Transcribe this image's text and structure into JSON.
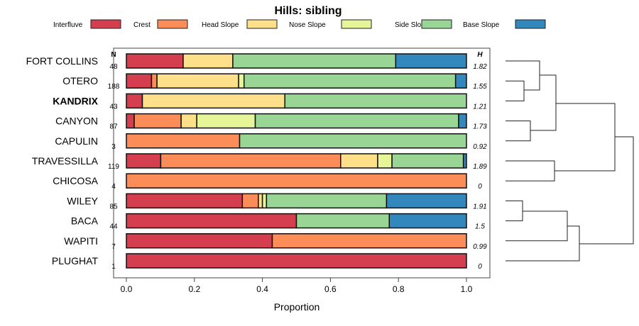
{
  "chart_data": {
    "type": "bar",
    "stacked": true,
    "orientation": "horizontal",
    "title": "Hills: sibling",
    "xlabel": "Proportion",
    "xlim": [
      0,
      1
    ],
    "xticks": [
      "0.0",
      "0.2",
      "0.4",
      "0.6",
      "0.8",
      "1.0"
    ],
    "n_header": "N",
    "h_header": "H",
    "legend_position": "top",
    "series": [
      {
        "name": "Interfluve",
        "color": "#D53E4F"
      },
      {
        "name": "Crest",
        "color": "#FC8D59"
      },
      {
        "name": "Head Slope",
        "color": "#FEE08B"
      },
      {
        "name": "Nose Slope",
        "color": "#E6F598"
      },
      {
        "name": "Side Slope",
        "color": "#99D594"
      },
      {
        "name": "Base Slope",
        "color": "#3288BD"
      }
    ],
    "rows": [
      {
        "label": "FORT COLLINS",
        "n": "48",
        "h": "1.82",
        "bold": false,
        "values": [
          0.167,
          0,
          0.146,
          0,
          0.479,
          0.208
        ]
      },
      {
        "label": "OTERO",
        "n": "188",
        "h": "1.55",
        "bold": false,
        "values": [
          0.074,
          0.016,
          0.24,
          0.016,
          0.622,
          0.032
        ]
      },
      {
        "label": "KANDRIX",
        "n": "43",
        "h": "1.21",
        "bold": true,
        "values": [
          0.047,
          0,
          0.419,
          0,
          0.534,
          0
        ]
      },
      {
        "label": "CANYON",
        "n": "87",
        "h": "1.73",
        "bold": false,
        "values": [
          0.023,
          0.138,
          0.046,
          0.172,
          0.598,
          0.023
        ]
      },
      {
        "label": "CAPULIN",
        "n": "3",
        "h": "0.92",
        "bold": false,
        "values": [
          0,
          0.333,
          0,
          0,
          0.667,
          0
        ]
      },
      {
        "label": "TRAVESSILLA",
        "n": "119",
        "h": "1.89",
        "bold": false,
        "values": [
          0.101,
          0.529,
          0.109,
          0.042,
          0.21,
          0.009
        ]
      },
      {
        "label": "CHICOSA",
        "n": "4",
        "h": "0",
        "bold": false,
        "values": [
          0,
          1,
          0,
          0,
          0,
          0
        ]
      },
      {
        "label": "WILEY",
        "n": "85",
        "h": "1.91",
        "bold": false,
        "values": [
          0.341,
          0.047,
          0.012,
          0.012,
          0.353,
          0.235
        ]
      },
      {
        "label": "BACA",
        "n": "44",
        "h": "1.5",
        "bold": false,
        "values": [
          0.5,
          0,
          0,
          0,
          0.273,
          0.227
        ]
      },
      {
        "label": "WAPITI",
        "n": "7",
        "h": "0.99",
        "bold": false,
        "values": [
          0.429,
          0.571,
          0,
          0,
          0,
          0
        ]
      },
      {
        "label": "PLUGHAT",
        "n": "1",
        "h": "0",
        "bold": false,
        "values": [
          1,
          0,
          0,
          0,
          0,
          0
        ]
      }
    ]
  }
}
